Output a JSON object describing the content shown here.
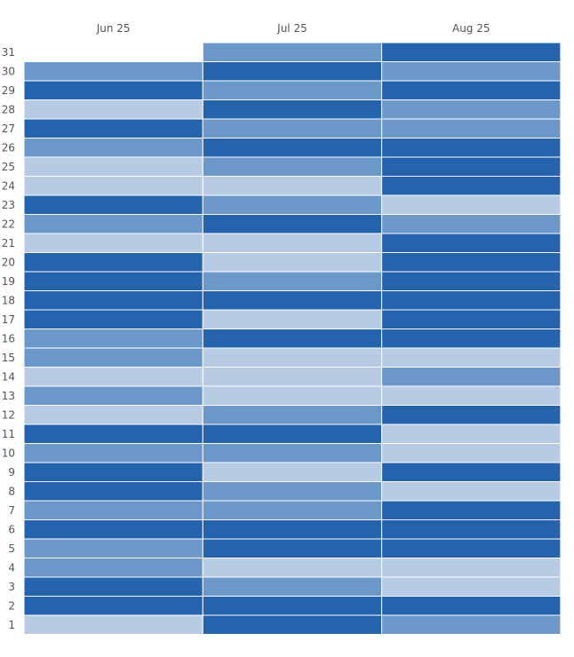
{
  "chart_data": {
    "type": "heatmap",
    "columns": [
      "Jun 25",
      "Jul 25",
      "Aug 25"
    ],
    "rows": [
      31,
      30,
      29,
      28,
      27,
      26,
      25,
      24,
      23,
      22,
      21,
      20,
      19,
      18,
      17,
      16,
      15,
      14,
      13,
      12,
      11,
      10,
      9,
      8,
      7,
      6,
      5,
      4,
      3,
      2,
      1
    ],
    "levels": {
      "0": "#b7cbe4",
      "1": "#6c98c9",
      "2": "#2563ad"
    },
    "values": [
      [
        null,
        1,
        2
      ],
      [
        1,
        2,
        1
      ],
      [
        2,
        1,
        2
      ],
      [
        0,
        2,
        1
      ],
      [
        2,
        1,
        1
      ],
      [
        1,
        2,
        2
      ],
      [
        0,
        1,
        2
      ],
      [
        0,
        0,
        2
      ],
      [
        2,
        1,
        0
      ],
      [
        1,
        2,
        1
      ],
      [
        0,
        0,
        2
      ],
      [
        2,
        0,
        2
      ],
      [
        2,
        1,
        2
      ],
      [
        2,
        2,
        2
      ],
      [
        2,
        0,
        2
      ],
      [
        1,
        2,
        2
      ],
      [
        1,
        0,
        0
      ],
      [
        0,
        0,
        1
      ],
      [
        1,
        0,
        0
      ],
      [
        0,
        1,
        2
      ],
      [
        2,
        2,
        0
      ],
      [
        1,
        1,
        0
      ],
      [
        2,
        0,
        2
      ],
      [
        2,
        1,
        0
      ],
      [
        1,
        1,
        2
      ],
      [
        2,
        2,
        2
      ],
      [
        1,
        2,
        2
      ],
      [
        1,
        0,
        0
      ],
      [
        2,
        1,
        0
      ],
      [
        2,
        2,
        2
      ],
      [
        0,
        2,
        1
      ]
    ]
  }
}
